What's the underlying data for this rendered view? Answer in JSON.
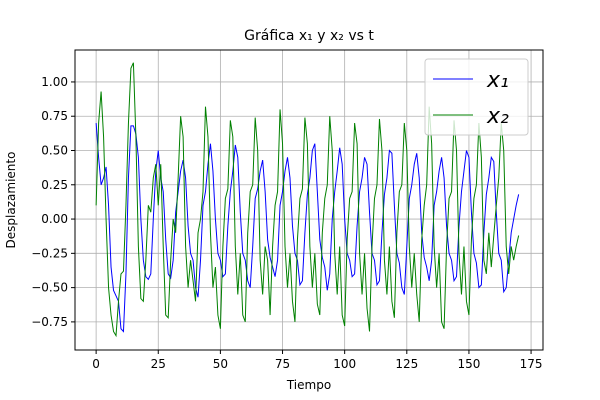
{
  "chart_data": {
    "type": "line",
    "title": "Gráfica x₁ y x₂ vs t",
    "xlabel": "Tiempo",
    "ylabel": "Desplazamiento",
    "x": [
      0,
      1,
      2,
      3,
      4,
      5,
      6,
      7,
      8,
      9,
      10,
      11,
      12,
      13,
      14,
      15,
      16,
      17,
      18,
      19,
      20,
      21,
      22,
      23,
      24,
      25,
      26,
      27,
      28,
      29,
      30,
      31,
      32,
      33,
      34,
      35,
      36,
      37,
      38,
      39,
      40,
      41,
      42,
      43,
      44,
      45,
      46,
      47,
      48,
      49,
      50,
      51,
      52,
      53,
      54,
      55,
      56,
      57,
      58,
      59,
      60,
      61,
      62,
      63,
      64,
      65,
      66,
      67,
      68,
      69,
      70,
      71,
      72,
      73,
      74,
      75,
      76,
      77,
      78,
      79,
      80,
      81,
      82,
      83,
      84,
      85,
      86,
      87,
      88,
      89,
      90,
      91,
      92,
      93,
      94,
      95,
      96,
      97,
      98,
      99,
      100,
      101,
      102,
      103,
      104,
      105,
      106,
      107,
      108,
      109,
      110,
      111,
      112,
      113,
      114,
      115,
      116,
      117,
      118,
      119,
      120,
      121,
      122,
      123,
      124,
      125,
      126,
      127,
      128,
      129,
      130,
      131,
      132,
      133,
      134,
      135,
      136,
      137,
      138,
      139,
      140,
      141,
      142,
      143,
      144,
      145,
      146,
      147,
      148,
      149,
      150,
      151,
      152,
      153,
      154,
      155,
      156,
      157,
      158,
      159,
      160,
      161,
      162,
      163,
      164,
      165,
      166,
      167,
      168,
      169,
      170
    ],
    "series": [
      {
        "name": "x₁",
        "color": "#0000ff",
        "values": [
          0.7,
          0.45,
          0.25,
          0.3,
          0.38,
          0.1,
          -0.35,
          -0.52,
          -0.56,
          -0.6,
          -0.8,
          -0.82,
          -0.4,
          0.3,
          0.68,
          0.68,
          0.62,
          0.45,
          0.0,
          -0.3,
          -0.42,
          -0.44,
          -0.4,
          0.0,
          0.35,
          0.5,
          0.3,
          0.2,
          -0.15,
          -0.4,
          -0.43,
          -0.3,
          0.05,
          0.2,
          0.35,
          0.43,
          0.3,
          -0.05,
          -0.25,
          -0.3,
          -0.5,
          -0.57,
          -0.3,
          0.1,
          0.2,
          0.4,
          0.55,
          0.35,
          0.0,
          -0.25,
          -0.3,
          -0.42,
          -0.4,
          -0.05,
          0.2,
          0.35,
          0.54,
          0.45,
          0.05,
          -0.25,
          -0.3,
          -0.45,
          -0.5,
          -0.2,
          0.15,
          0.22,
          0.35,
          0.43,
          0.2,
          -0.15,
          -0.28,
          -0.35,
          -0.42,
          -0.3,
          0.1,
          0.2,
          0.35,
          0.45,
          0.3,
          -0.05,
          -0.25,
          -0.3,
          -0.48,
          -0.45,
          -0.1,
          0.18,
          0.3,
          0.5,
          0.55,
          0.2,
          -0.15,
          -0.28,
          -0.35,
          -0.52,
          -0.4,
          0.0,
          0.2,
          0.35,
          0.52,
          0.4,
          0.0,
          -0.25,
          -0.3,
          -0.42,
          -0.4,
          -0.05,
          0.2,
          0.3,
          0.45,
          0.4,
          0.05,
          -0.25,
          -0.3,
          -0.48,
          -0.45,
          -0.1,
          0.18,
          0.3,
          0.5,
          0.48,
          0.1,
          -0.25,
          -0.32,
          -0.5,
          -0.55,
          -0.2,
          0.15,
          0.25,
          0.4,
          0.48,
          0.3,
          -0.1,
          -0.28,
          -0.35,
          -0.45,
          -0.3,
          0.1,
          0.2,
          0.35,
          0.45,
          0.3,
          -0.05,
          -0.25,
          -0.3,
          -0.45,
          -0.42,
          -0.05,
          0.2,
          0.35,
          0.5,
          0.45,
          0.05,
          -0.25,
          -0.32,
          -0.5,
          -0.48,
          -0.1,
          0.18,
          0.3,
          0.45,
          0.42,
          0.05,
          -0.25,
          -0.3,
          -0.53,
          -0.5,
          -0.3,
          -0.1,
          0.0,
          0.1,
          0.18
        ]
      },
      {
        "name": "x₂",
        "color": "#008000",
        "values": [
          0.1,
          0.7,
          0.93,
          0.6,
          0.0,
          -0.5,
          -0.7,
          -0.82,
          -0.85,
          -0.6,
          -0.4,
          -0.38,
          0.1,
          0.7,
          1.1,
          1.14,
          0.6,
          -0.2,
          -0.58,
          -0.6,
          -0.3,
          0.1,
          0.05,
          0.3,
          0.4,
          0.1,
          0.4,
          -0.2,
          -0.7,
          -0.72,
          -0.3,
          0.0,
          -0.1,
          0.3,
          0.75,
          0.6,
          -0.2,
          -0.5,
          -0.3,
          -0.45,
          -0.6,
          -0.1,
          0.0,
          0.2,
          0.82,
          0.6,
          -0.1,
          -0.5,
          -0.35,
          -0.7,
          -0.8,
          -0.2,
          0.15,
          0.22,
          0.72,
          0.6,
          -0.2,
          -0.55,
          -0.25,
          -0.7,
          -0.75,
          -0.1,
          0.2,
          0.25,
          0.74,
          0.5,
          -0.3,
          -0.55,
          -0.2,
          -0.3,
          -0.7,
          -0.2,
          0.1,
          0.2,
          0.8,
          0.55,
          -0.2,
          -0.5,
          -0.25,
          -0.6,
          -0.75,
          -0.15,
          0.15,
          0.22,
          0.74,
          0.55,
          -0.2,
          -0.5,
          -0.25,
          -0.62,
          -0.7,
          -0.1,
          0.15,
          0.25,
          0.75,
          0.5,
          -0.25,
          -0.55,
          -0.2,
          -0.7,
          -0.78,
          -0.15,
          0.15,
          0.2,
          0.7,
          0.55,
          -0.25,
          -0.55,
          -0.25,
          -0.65,
          -0.82,
          -0.2,
          0.15,
          0.25,
          0.73,
          0.5,
          -0.3,
          -0.55,
          -0.2,
          -0.6,
          -0.72,
          -0.1,
          0.2,
          0.25,
          0.7,
          0.5,
          -0.2,
          -0.5,
          -0.25,
          -0.55,
          -0.75,
          -0.15,
          0.1,
          0.25,
          0.82,
          0.55,
          -0.2,
          -0.5,
          -0.25,
          -0.75,
          -0.8,
          -0.2,
          0.15,
          0.2,
          0.72,
          0.5,
          -0.25,
          -0.55,
          -0.2,
          -0.6,
          -0.7,
          -0.15,
          0.15,
          0.25,
          0.7,
          0.45,
          -0.3,
          -0.4,
          -0.1,
          -0.35,
          -0.12,
          0.1,
          0.3,
          0.7,
          0.5,
          -0.2,
          -0.4,
          -0.2,
          -0.3,
          -0.2,
          -0.12
        ]
      }
    ],
    "xlim": [
      -8.5,
      179.8
    ],
    "ylim": [
      -0.955,
      1.233
    ],
    "xticks": [
      0,
      25,
      50,
      75,
      100,
      125,
      150,
      175
    ],
    "yticks": [
      {
        "value": -0.75,
        "label": "−0.75"
      },
      {
        "value": -0.5,
        "label": "−0.50"
      },
      {
        "value": -0.25,
        "label": "−0.25"
      },
      {
        "value": 0,
        "label": "0.00"
      },
      {
        "value": 0.25,
        "label": "0.25"
      },
      {
        "value": 0.5,
        "label": "0.50"
      },
      {
        "value": 0.75,
        "label": "0.75"
      },
      {
        "value": 1,
        "label": "1.00"
      }
    ],
    "grid": true,
    "legend": "upper-right"
  }
}
